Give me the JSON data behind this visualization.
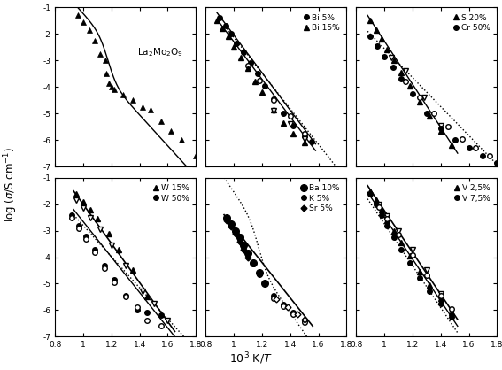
{
  "xlim": [
    0.8,
    1.8
  ],
  "ylim": [
    -7,
    -1
  ],
  "xticks": [
    0.8,
    1.0,
    1.2,
    1.4,
    1.6,
    1.8
  ],
  "yticks": [
    -7,
    -6,
    -5,
    -4,
    -3,
    -2,
    -1
  ],
  "xlabel": "10$^3$ K/$T$",
  "ylabel": "log ($\\sigma$/S cm$^{-1}$)"
}
